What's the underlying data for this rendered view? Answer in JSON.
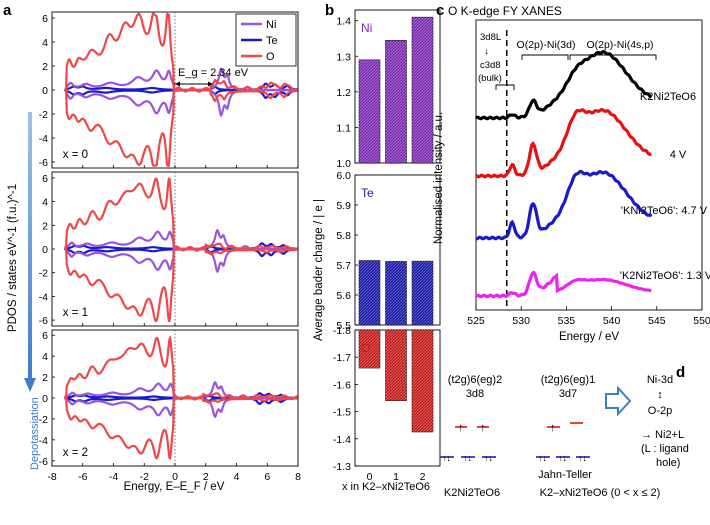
{
  "panel_labels": {
    "a": "a",
    "b": "b",
    "c": "c",
    "d": "d"
  },
  "chart_data": [
    {
      "id": "a",
      "type": "line",
      "title": "",
      "xlabel": "Energy, E–E_F / eV",
      "ylabel": "PDOS / states eV^-1 (f.u.)^-1",
      "xlim": [
        -8,
        8
      ],
      "ylim": [
        -6.5,
        6.5
      ],
      "xticks": [
        "-8",
        "-6",
        "-4",
        "-2",
        "0",
        "2",
        "4",
        "6",
        "8"
      ],
      "yticks": [
        "6",
        "4",
        "2",
        "0",
        "-2",
        "-4",
        "-6"
      ],
      "legend": {
        "placement": "top-right",
        "entries": [
          "Ni",
          "Te",
          "O"
        ]
      },
      "colors": {
        "Ni": "#9955dd",
        "Te": "#1a1acc",
        "O": "#f04848"
      },
      "annotations": {
        "gap": "E_g = 2.34 eV",
        "arrow": "Depotassiation"
      },
      "subplots": [
        {
          "label": "x = 0"
        },
        {
          "label": "x = 1"
        },
        {
          "label": "x = 2"
        }
      ]
    },
    {
      "id": "b",
      "type": "bar",
      "xlabel": "x in K2–xNi2TeO6",
      "ylabel": "Average bader charge / | e |",
      "categories": [
        "0",
        "1",
        "2"
      ],
      "subplots": [
        {
          "element": "Ni",
          "values": [
            1.29,
            1.345,
            1.41
          ],
          "ylim": [
            1.0,
            1.4
          ],
          "yticks": [
            "1.0",
            "1.1",
            "1.2",
            "1.3",
            "1.4"
          ],
          "color": "#7a2ab0"
        },
        {
          "element": "Te",
          "values": [
            5.715,
            5.712,
            5.713
          ],
          "ylim": [
            5.5,
            6.0
          ],
          "yticks": [
            "5.5",
            "5.6",
            "5.7",
            "5.8",
            "5.9",
            "6.0"
          ],
          "color": "#1a1aa8"
        },
        {
          "element": "O",
          "values": [
            -1.66,
            -1.54,
            -1.425
          ],
          "ylim": [
            -1.3,
            -1.8
          ],
          "yticks": [
            "-1.8",
            "-1.7",
            "-1.6",
            "-1.5",
            "-1.4",
            "-1.3"
          ],
          "color": "#c41a1a"
        }
      ]
    },
    {
      "id": "c",
      "type": "line",
      "title": "O K-edge FY XANES",
      "xlabel": "Energy / eV",
      "ylabel": "Normalised intensity / a.u.",
      "xlim": [
        525,
        550
      ],
      "xticks": [
        "525",
        "530",
        "535",
        "540",
        "545",
        "550"
      ],
      "annotations": [
        "3d8L",
        "↓",
        "c3d8",
        "(bulk)",
        "O(2p)-Ni(3d)",
        "O(2p)-Ni(4s,p)"
      ],
      "series": [
        {
          "name": "K2Ni2TeO6",
          "color": "#000000"
        },
        {
          "name": "4 V",
          "color": "#e81010"
        },
        {
          "name": "'KNi2TeO6': 4.7 V",
          "color": "#1a1acc"
        },
        {
          "name": "'K2Ni2TeO6': 1.3 V",
          "color": "#ee22ee"
        }
      ]
    }
  ],
  "panel_d": {
    "left_config": "(t2g)6(eg)2",
    "left_d": "3d8",
    "right_config": "(t2g)6(eg)1",
    "right_d": "3d7",
    "jahn_teller": "Jahn-Teller",
    "hybrid_top": "Ni-3d",
    "hybrid_arrow": "↕",
    "hybrid_bottom": "O-2p",
    "result": "→ Ni2+L",
    "ligand_note_1": "(L : ligand",
    "ligand_note_2": "hole)",
    "left_compound": "K2Ni2TeO6",
    "right_compound": "K2–xNi2TeO6 (0 < x ≤ 2)"
  }
}
